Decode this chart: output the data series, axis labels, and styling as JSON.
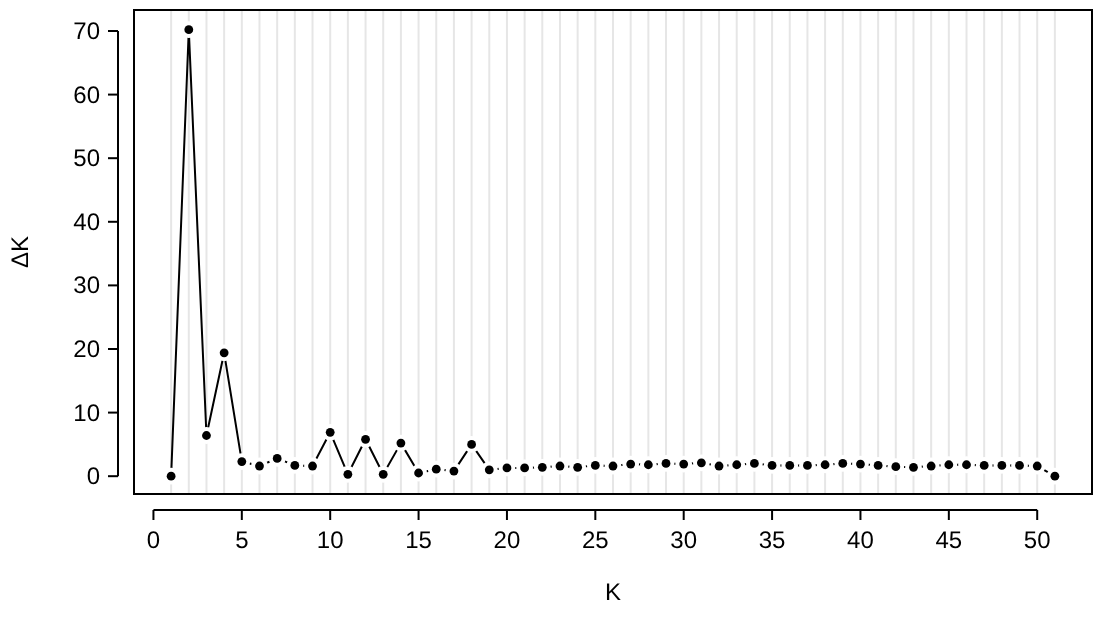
{
  "chart_data": {
    "type": "line",
    "xlabel": "K",
    "ylabel": "ΔK",
    "x": [
      1,
      2,
      3,
      4,
      5,
      6,
      7,
      8,
      9,
      10,
      11,
      12,
      13,
      14,
      15,
      16,
      17,
      18,
      19,
      20,
      21,
      22,
      23,
      24,
      25,
      26,
      27,
      28,
      29,
      30,
      31,
      32,
      33,
      34,
      35,
      36,
      37,
      38,
      39,
      40,
      41,
      42,
      43,
      44,
      45,
      46,
      47,
      48,
      49,
      50,
      51
    ],
    "series": [
      {
        "color": "#000000",
        "values": [
          0,
          70.2,
          6.4,
          19.4,
          2.3,
          1.6,
          2.8,
          1.7,
          1.6,
          6.9,
          0.3,
          5.8,
          0.3,
          5.2,
          0.5,
          1.1,
          0.8,
          5.0,
          1.0,
          1.3,
          1.3,
          1.4,
          1.6,
          1.4,
          1.7,
          1.6,
          1.9,
          1.8,
          2.0,
          1.9,
          2.1,
          1.6,
          1.8,
          2.0,
          1.7,
          1.7,
          1.7,
          1.8,
          2.0,
          1.9,
          1.7,
          1.5,
          1.4,
          1.6,
          1.8,
          1.8,
          1.7,
          1.7,
          1.7,
          1.6,
          0
        ]
      }
    ],
    "xlim": [
      -1.1,
      53.1
    ],
    "xticks": [
      0,
      5,
      10,
      15,
      20,
      25,
      30,
      35,
      40,
      45,
      50
    ],
    "ylim": [
      -2.8,
      73.3
    ],
    "yticks": [
      0,
      10,
      20,
      30,
      40,
      50,
      60,
      70
    ],
    "grid": "x",
    "marker": "circle",
    "line_style": "solid"
  }
}
